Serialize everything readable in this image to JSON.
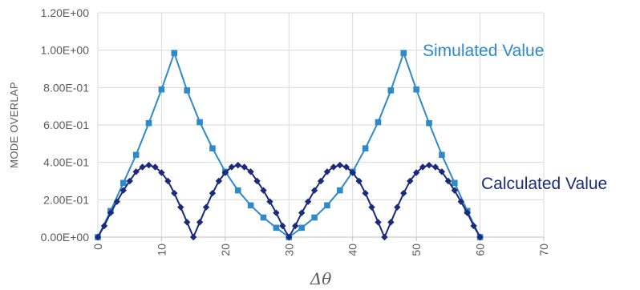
{
  "chart_data": {
    "type": "line",
    "title": "",
    "xlabel": "Δθ",
    "ylabel": "MODE OVERLAP",
    "xlim": [
      0,
      70
    ],
    "ylim": [
      0,
      1.2
    ],
    "x_ticks": [
      "0",
      "10",
      "20",
      "30",
      "40",
      "50",
      "60",
      "70"
    ],
    "y_ticks": [
      "0.00E+00",
      "2.00E-01",
      "4.00E-01",
      "6.00E-01",
      "8.00E-01",
      "1.00E+00",
      "1.20E+00"
    ],
    "grid": true,
    "series": [
      {
        "name": "Simulated Value",
        "color": "#2e8ac8",
        "marker": "square",
        "x": [
          0,
          2,
          4,
          6,
          8,
          10,
          12,
          14,
          16,
          18,
          20,
          22,
          24,
          26,
          28,
          30,
          32,
          34,
          36,
          38,
          40,
          42,
          44,
          46,
          48,
          50,
          52,
          54,
          56,
          58,
          60
        ],
        "y": [
          0.0,
          0.14,
          0.29,
          0.44,
          0.61,
          0.79,
          0.985,
          0.785,
          0.615,
          0.475,
          0.35,
          0.25,
          0.17,
          0.105,
          0.05,
          0.0,
          0.05,
          0.105,
          0.17,
          0.25,
          0.35,
          0.475,
          0.615,
          0.785,
          0.985,
          0.79,
          0.61,
          0.44,
          0.29,
          0.14,
          0.0
        ]
      },
      {
        "name": "Calculated Value",
        "color": "#1b2a7a",
        "marker": "diamond",
        "x": [
          0,
          1,
          2,
          3,
          4,
          5,
          6,
          7,
          8,
          9,
          10,
          11,
          12,
          13,
          14,
          15,
          16,
          17,
          18,
          19,
          20,
          21,
          22,
          23,
          24,
          25,
          26,
          27,
          28,
          29,
          30,
          31,
          32,
          33,
          34,
          35,
          36,
          37,
          38,
          39,
          40,
          41,
          42,
          43,
          44,
          45,
          46,
          47,
          48,
          49,
          50,
          51,
          52,
          53,
          54,
          55,
          56,
          57,
          58,
          59,
          60
        ],
        "y": [
          0.0,
          0.06,
          0.13,
          0.19,
          0.25,
          0.3,
          0.35,
          0.375,
          0.385,
          0.375,
          0.345,
          0.3,
          0.235,
          0.16,
          0.08,
          0.0,
          0.08,
          0.16,
          0.235,
          0.3,
          0.345,
          0.375,
          0.385,
          0.375,
          0.35,
          0.3,
          0.25,
          0.19,
          0.13,
          0.06,
          0.0,
          0.06,
          0.13,
          0.19,
          0.25,
          0.3,
          0.35,
          0.375,
          0.385,
          0.375,
          0.345,
          0.3,
          0.235,
          0.16,
          0.08,
          0.0,
          0.08,
          0.16,
          0.235,
          0.3,
          0.345,
          0.375,
          0.385,
          0.375,
          0.35,
          0.3,
          0.25,
          0.19,
          0.13,
          0.06,
          0.0
        ]
      }
    ]
  }
}
